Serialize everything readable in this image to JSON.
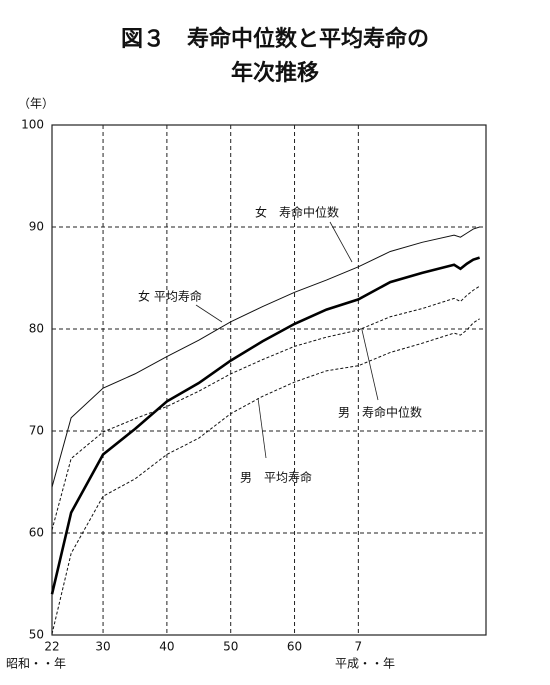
{
  "chart_data": {
    "type": "line",
    "title": "図３　寿命中位数と平均寿命の",
    "subtitle": "年次推移",
    "ylabel": "（年）",
    "x_label_left": "昭和・・年",
    "x_label_right": "平成・・年",
    "x": [
      1947,
      1950,
      1955,
      1960,
      1965,
      1970,
      1975,
      1980,
      1985,
      1990,
      1995,
      2000,
      2005,
      2010,
      2011,
      2012,
      2013,
      2014
    ],
    "series": [
      {
        "name": "女　寿命中位数",
        "color": "#111111",
        "line_style": "solid",
        "values": [
          64.5,
          71.3,
          74.2,
          75.6,
          77.3,
          78.9,
          80.7,
          82.2,
          83.6,
          84.8,
          86.1,
          87.6,
          88.5,
          89.2,
          89.0,
          89.4,
          89.8,
          90.0
        ]
      },
      {
        "name": "女 平均寿命",
        "color": "#000000",
        "line_style": "solid",
        "values": [
          54.0,
          62.0,
          67.7,
          70.2,
          72.9,
          74.7,
          76.9,
          78.8,
          80.5,
          81.9,
          82.9,
          84.6,
          85.5,
          86.3,
          85.9,
          86.4,
          86.8,
          87.0
        ]
      },
      {
        "name": "男　寿命中位数",
        "color": "#111111",
        "line_style": "dashed",
        "values": [
          60.3,
          67.3,
          69.9,
          71.2,
          72.4,
          73.9,
          75.6,
          77.0,
          78.3,
          79.2,
          79.9,
          81.2,
          82.0,
          83.0,
          82.7,
          83.3,
          83.8,
          84.2
        ]
      },
      {
        "name": "男　平均寿命",
        "color": "#111111",
        "line_style": "dashed",
        "values": [
          50.1,
          58.0,
          63.6,
          65.3,
          67.7,
          69.3,
          71.7,
          73.4,
          74.8,
          75.9,
          76.4,
          77.7,
          78.6,
          79.6,
          79.4,
          79.9,
          80.6,
          81.0
        ]
      }
    ],
    "xlim": [
      1947,
      2015
    ],
    "xticks": [
      {
        "value": 1947,
        "label": "22"
      },
      {
        "value": 1955,
        "label": "30"
      },
      {
        "value": 1965,
        "label": "40"
      },
      {
        "value": 1975,
        "label": "50"
      },
      {
        "value": 1985,
        "label": "60"
      },
      {
        "value": 1995,
        "label": "7"
      }
    ],
    "ylim": [
      50,
      100
    ],
    "yticks": [
      50,
      60,
      70,
      80,
      90,
      100
    ],
    "grid": true
  }
}
